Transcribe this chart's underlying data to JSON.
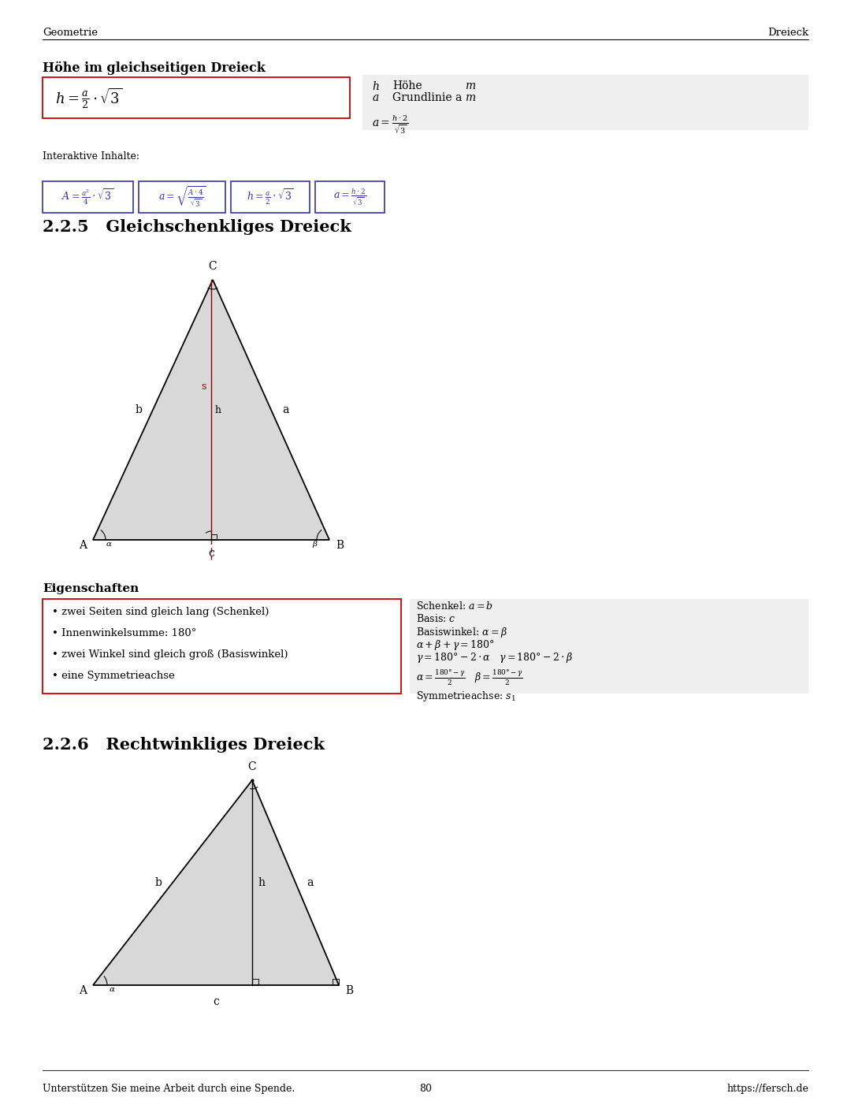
{
  "page_header_left": "Geometrie",
  "page_header_right": "Dreieck",
  "section_title": "Höhe im gleichseitigen Dreieck",
  "formula_main": "$h = \\frac{a}{2} \\cdot \\sqrt{3}$",
  "legend_a2": "$a = \\frac{h \\cdot 2}{\\sqrt{3}}$",
  "interactive_label": "Interaktive Inhalte:",
  "interactive_formulas": [
    "$A = \\frac{a^2}{4} \\cdot \\sqrt{3}$",
    "$a = \\sqrt{\\frac{A \\cdot 4}{\\sqrt{3}}}$",
    "$h = \\frac{a}{2} \\cdot \\sqrt{3}$",
    "$a = \\frac{h \\cdot 2}{\\sqrt{3}}$"
  ],
  "section_225": "2.2.5   Gleichschenkliges Dreieck",
  "section_226": "2.2.6   Rechtwinkliges Dreieck",
  "eigenschaften_title": "Eigenschaften",
  "bullet_points": [
    "• zwei Seiten sind gleich lang (Schenkel)",
    "• Innenwinkelsumme: 180°",
    "• zwei Winkel sind gleich groß (Basiswinkel)",
    "• eine Symmetrieachse"
  ],
  "footer_left": "Unterstützen Sie meine Arbeit durch eine Spende.",
  "footer_center": "80",
  "footer_right": "https://fersch.de",
  "bg_color": "#ffffff",
  "formula_box_color": "#cc0000",
  "interactive_box_color": "#3333aa",
  "gray_bg": "#efefef"
}
